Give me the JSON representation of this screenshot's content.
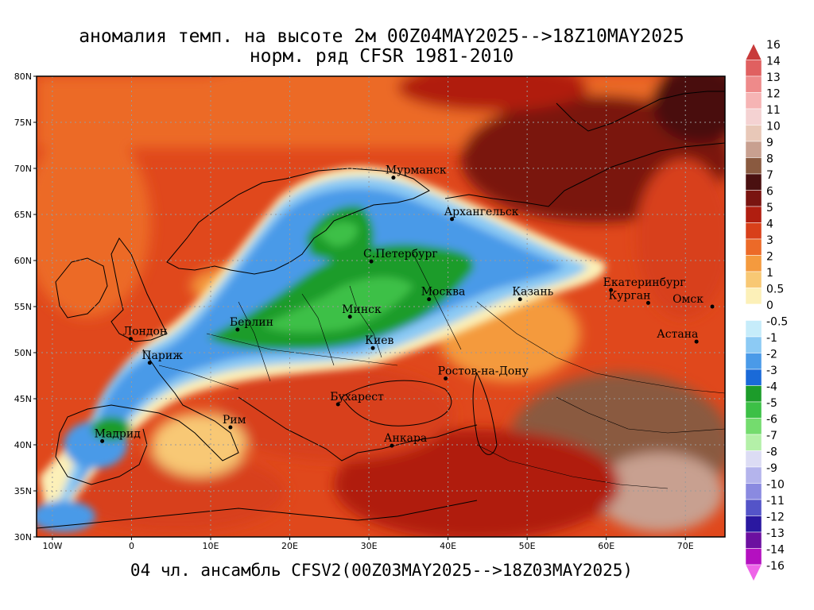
{
  "titles": {
    "line1": "аномалия темп. на высоте 2м 00Z04MAY2025-->18Z10MAY2025",
    "line2": "норм. ряд CFSR 1981-2010",
    "footer": "04 чл. ансамбль CFSV2(00Z03MAY2025-->18Z03MAY2025)"
  },
  "map": {
    "lon_range": [
      -12,
      75
    ],
    "lat_range": [
      30,
      80
    ],
    "lat_labels": [
      "80N",
      "75N",
      "70N",
      "65N",
      "60N",
      "55N",
      "50N",
      "45N",
      "40N",
      "35N",
      "30N"
    ],
    "lon_labels": [
      "10W",
      "0",
      "10E",
      "20E",
      "30E",
      "40E",
      "50E",
      "60E",
      "70E"
    ],
    "cities": [
      {
        "name": "Мурманск",
        "lon": 33.1,
        "lat": 69.0
      },
      {
        "name": "Архангельск",
        "lon": 40.5,
        "lat": 64.5
      },
      {
        "name": "С.Петербург",
        "lon": 30.3,
        "lat": 59.9
      },
      {
        "name": "Москва",
        "lon": 37.6,
        "lat": 55.8
      },
      {
        "name": "Казань",
        "lon": 49.1,
        "lat": 55.8
      },
      {
        "name": "Екатеринбург",
        "lon": 60.6,
        "lat": 56.8
      },
      {
        "name": "Курган",
        "lon": 65.3,
        "lat": 55.4
      },
      {
        "name": "Омск",
        "lon": 73.4,
        "lat": 55.0
      },
      {
        "name": "Астана",
        "lon": 71.4,
        "lat": 51.2
      },
      {
        "name": "Минск",
        "lon": 27.6,
        "lat": 53.9
      },
      {
        "name": "Берлин",
        "lon": 13.4,
        "lat": 52.5
      },
      {
        "name": "Лондон",
        "lon": -0.1,
        "lat": 51.5
      },
      {
        "name": "Париж",
        "lon": 2.3,
        "lat": 48.9
      },
      {
        "name": "Киев",
        "lon": 30.5,
        "lat": 50.5
      },
      {
        "name": "Ростов-на-Дону",
        "lon": 39.7,
        "lat": 47.2
      },
      {
        "name": "Бухарест",
        "lon": 26.1,
        "lat": 44.4
      },
      {
        "name": "Рим",
        "lon": 12.5,
        "lat": 41.9
      },
      {
        "name": "Мадрид",
        "lon": -3.7,
        "lat": 40.4
      },
      {
        "name": "Анкара",
        "lon": 32.9,
        "lat": 39.9
      }
    ]
  },
  "colorbar": {
    "levels": [
      "16",
      "14",
      "13",
      "12",
      "11",
      "10",
      "9",
      "8",
      "7",
      "6",
      "5",
      "4",
      "3",
      "2",
      "1",
      "0.5",
      "0",
      "-0.5",
      "-1",
      "-2",
      "-3",
      "-4",
      "-5",
      "-6",
      "-7",
      "-8",
      "-9",
      "-10",
      "-11",
      "-12",
      "-13",
      "-14",
      "-16"
    ],
    "colors": [
      "#c83a3a",
      "#e06060",
      "#ee8a8a",
      "#f6b4b4",
      "#f4d2d2",
      "#e8c8b8",
      "#c8a090",
      "#8a5a40",
      "#4a1010",
      "#7a1410",
      "#b01e10",
      "#d8401a",
      "#ec6a28",
      "#f49a3e",
      "#f8c874",
      "#fcf0b8",
      "#ffffff",
      "#c6ecfa",
      "#8ccaf4",
      "#4a9ae8",
      "#1a6ad8",
      "#1c9c2a",
      "#3cc046",
      "#74dc6e",
      "#b4f0a8",
      "#dcdcf4",
      "#b4b4ec",
      "#8a8ae0",
      "#5454c8",
      "#2a18a0",
      "#6c10a0",
      "#b410c0",
      "#ee64e8"
    ]
  }
}
